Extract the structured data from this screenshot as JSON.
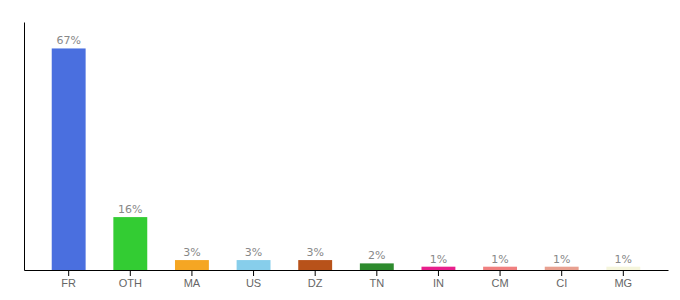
{
  "chart_data": {
    "type": "bar",
    "categories": [
      "FR",
      "OTH",
      "MA",
      "US",
      "DZ",
      "TN",
      "IN",
      "CM",
      "CI",
      "MG"
    ],
    "values": [
      67,
      16,
      3,
      3,
      3,
      2,
      1,
      1,
      1,
      1
    ],
    "value_labels": [
      "67%",
      "16%",
      "3%",
      "3%",
      "3%",
      "2%",
      "1%",
      "1%",
      "1%",
      "1%"
    ],
    "colors": [
      "#4a6fdf",
      "#33cc33",
      "#f5a623",
      "#87ceeb",
      "#b8521a",
      "#2e8b2e",
      "#e81f8c",
      "#f08080",
      "#e8a090",
      "#f5f5dc"
    ],
    "ylim": [
      0,
      75
    ],
    "data_labels": true,
    "tick_labels": "x",
    "grid": false
  }
}
